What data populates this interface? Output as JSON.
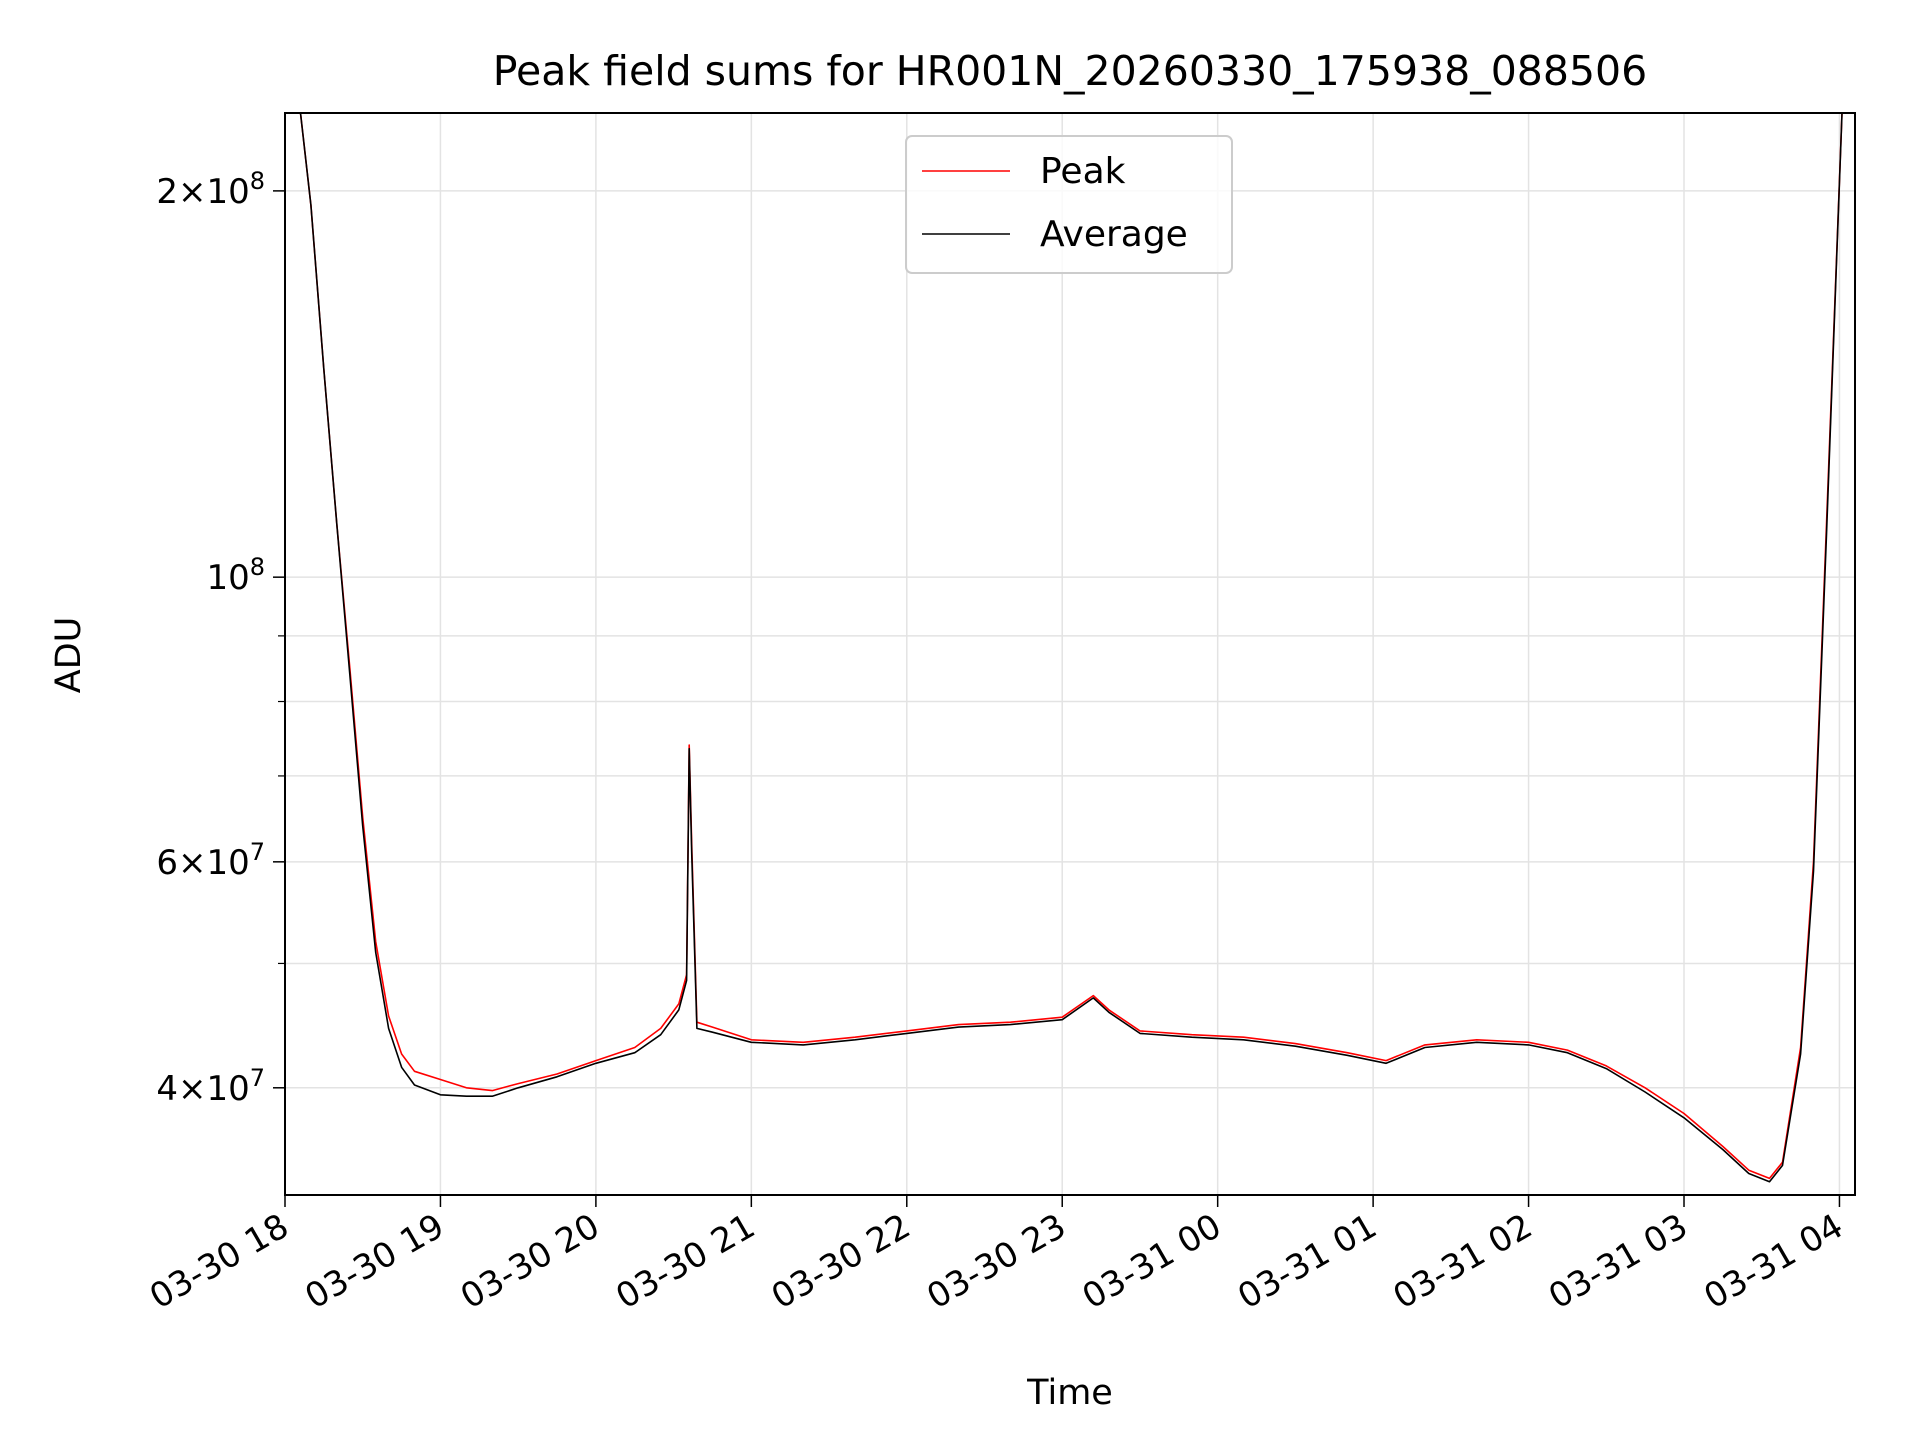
{
  "chart_data": {
    "type": "line",
    "title": "Peak field sums for HR001N_20260330_175938_088506",
    "xlabel": "Time",
    "ylabel": "ADU",
    "yscale": "log",
    "ylim": [
      33000000,
      230000000
    ],
    "xlim": [
      "2026-03-30T18:00",
      "2026-03-31T04:06"
    ],
    "grid": true,
    "legend_position": "top-center",
    "x_ticks": [
      {
        "t": "2026-03-30T18:00",
        "label": "03-30 18"
      },
      {
        "t": "2026-03-30T19:00",
        "label": "03-30 19"
      },
      {
        "t": "2026-03-30T20:00",
        "label": "03-30 20"
      },
      {
        "t": "2026-03-30T21:00",
        "label": "03-30 21"
      },
      {
        "t": "2026-03-30T22:00",
        "label": "03-30 22"
      },
      {
        "t": "2026-03-30T23:00",
        "label": "03-30 23"
      },
      {
        "t": "2026-03-31T00:00",
        "label": "03-31 00"
      },
      {
        "t": "2026-03-31T01:00",
        "label": "03-31 01"
      },
      {
        "t": "2026-03-31T02:00",
        "label": "03-31 02"
      },
      {
        "t": "2026-03-31T03:00",
        "label": "03-31 03"
      },
      {
        "t": "2026-03-31T04:00",
        "label": "03-31 04"
      }
    ],
    "y_ticks_major": [
      {
        "value": 40000000,
        "mantissa": "4",
        "exponent": "7"
      },
      {
        "value": 60000000,
        "mantissa": "6",
        "exponent": "7"
      },
      {
        "value": 100000000,
        "mantissa": "",
        "exponent": "8"
      },
      {
        "value": 200000000,
        "mantissa": "2",
        "exponent": "8"
      }
    ],
    "y_ticks_minor": [
      50000000,
      70000000,
      80000000,
      90000000
    ],
    "series": [
      {
        "name": "Peak",
        "color": "#ff0000",
        "points": [
          [
            "2026-03-30T18:06",
            230000000
          ],
          [
            "2026-03-30T18:10",
            195000000
          ],
          [
            "2026-03-30T18:15",
            145000000
          ],
          [
            "2026-03-30T18:20",
            110000000
          ],
          [
            "2026-03-30T18:25",
            85000000
          ],
          [
            "2026-03-30T18:30",
            65000000
          ],
          [
            "2026-03-30T18:35",
            52000000
          ],
          [
            "2026-03-30T18:40",
            45500000
          ],
          [
            "2026-03-30T18:45",
            42500000
          ],
          [
            "2026-03-30T18:50",
            41200000
          ],
          [
            "2026-03-30T19:00",
            40600000
          ],
          [
            "2026-03-30T19:10",
            40000000
          ],
          [
            "2026-03-30T19:20",
            39800000
          ],
          [
            "2026-03-30T19:30",
            40300000
          ],
          [
            "2026-03-30T19:45",
            41000000
          ],
          [
            "2026-03-30T20:00",
            42000000
          ],
          [
            "2026-03-30T20:15",
            43000000
          ],
          [
            "2026-03-30T20:25",
            44500000
          ],
          [
            "2026-03-30T20:32",
            46500000
          ],
          [
            "2026-03-30T20:35",
            49000000
          ],
          [
            "2026-03-30T20:36",
            74000000
          ],
          [
            "2026-03-30T20:37",
            62000000
          ],
          [
            "2026-03-30T20:39",
            45000000
          ],
          [
            "2026-03-30T20:45",
            44600000
          ],
          [
            "2026-03-30T21:00",
            43600000
          ],
          [
            "2026-03-30T21:20",
            43400000
          ],
          [
            "2026-03-30T21:40",
            43800000
          ],
          [
            "2026-03-30T22:00",
            44300000
          ],
          [
            "2026-03-30T22:20",
            44800000
          ],
          [
            "2026-03-30T22:40",
            45000000
          ],
          [
            "2026-03-30T23:00",
            45400000
          ],
          [
            "2026-03-30T23:12",
            47200000
          ],
          [
            "2026-03-30T23:18",
            46000000
          ],
          [
            "2026-03-30T23:30",
            44300000
          ],
          [
            "2026-03-30T23:50",
            44000000
          ],
          [
            "2026-03-31T00:10",
            43800000
          ],
          [
            "2026-03-31T00:30",
            43300000
          ],
          [
            "2026-03-31T00:50",
            42600000
          ],
          [
            "2026-03-31T01:05",
            42000000
          ],
          [
            "2026-03-31T01:20",
            43200000
          ],
          [
            "2026-03-31T01:40",
            43600000
          ],
          [
            "2026-03-31T02:00",
            43400000
          ],
          [
            "2026-03-31T02:15",
            42800000
          ],
          [
            "2026-03-31T02:30",
            41600000
          ],
          [
            "2026-03-31T02:45",
            40000000
          ],
          [
            "2026-03-31T03:00",
            38200000
          ],
          [
            "2026-03-31T03:15",
            36000000
          ],
          [
            "2026-03-31T03:25",
            34500000
          ],
          [
            "2026-03-31T03:33",
            34000000
          ],
          [
            "2026-03-31T03:38",
            35000000
          ],
          [
            "2026-03-31T03:45",
            43000000
          ],
          [
            "2026-03-31T03:50",
            60000000
          ],
          [
            "2026-03-31T03:55",
            110000000
          ],
          [
            "2026-03-31T04:01",
            230000000
          ]
        ]
      },
      {
        "name": "Average",
        "color": "#000000",
        "points": [
          [
            "2026-03-30T18:06",
            230000000
          ],
          [
            "2026-03-30T18:10",
            195000000
          ],
          [
            "2026-03-30T18:15",
            145000000
          ],
          [
            "2026-03-30T18:20",
            110000000
          ],
          [
            "2026-03-30T18:25",
            84000000
          ],
          [
            "2026-03-30T18:30",
            64000000
          ],
          [
            "2026-03-30T18:35",
            51000000
          ],
          [
            "2026-03-30T18:40",
            44500000
          ],
          [
            "2026-03-30T18:45",
            41500000
          ],
          [
            "2026-03-30T18:50",
            40200000
          ],
          [
            "2026-03-30T19:00",
            39500000
          ],
          [
            "2026-03-30T19:10",
            39400000
          ],
          [
            "2026-03-30T19:20",
            39400000
          ],
          [
            "2026-03-30T19:30",
            40000000
          ],
          [
            "2026-03-30T19:45",
            40800000
          ],
          [
            "2026-03-30T20:00",
            41800000
          ],
          [
            "2026-03-30T20:15",
            42600000
          ],
          [
            "2026-03-30T20:25",
            44000000
          ],
          [
            "2026-03-30T20:32",
            46000000
          ],
          [
            "2026-03-30T20:35",
            48500000
          ],
          [
            "2026-03-30T20:36",
            73500000
          ],
          [
            "2026-03-30T20:37",
            61000000
          ],
          [
            "2026-03-30T20:39",
            44500000
          ],
          [
            "2026-03-30T20:45",
            44200000
          ],
          [
            "2026-03-30T21:00",
            43400000
          ],
          [
            "2026-03-30T21:20",
            43200000
          ],
          [
            "2026-03-30T21:40",
            43600000
          ],
          [
            "2026-03-30T22:00",
            44100000
          ],
          [
            "2026-03-30T22:20",
            44600000
          ],
          [
            "2026-03-30T22:40",
            44800000
          ],
          [
            "2026-03-30T23:00",
            45200000
          ],
          [
            "2026-03-30T23:12",
            47000000
          ],
          [
            "2026-03-30T23:18",
            45800000
          ],
          [
            "2026-03-30T23:30",
            44100000
          ],
          [
            "2026-03-30T23:50",
            43800000
          ],
          [
            "2026-03-31T00:10",
            43600000
          ],
          [
            "2026-03-31T00:30",
            43100000
          ],
          [
            "2026-03-31T00:50",
            42400000
          ],
          [
            "2026-03-31T01:05",
            41800000
          ],
          [
            "2026-03-31T01:20",
            43000000
          ],
          [
            "2026-03-31T01:40",
            43400000
          ],
          [
            "2026-03-31T02:00",
            43200000
          ],
          [
            "2026-03-31T02:15",
            42600000
          ],
          [
            "2026-03-31T02:30",
            41400000
          ],
          [
            "2026-03-31T02:45",
            39700000
          ],
          [
            "2026-03-31T03:00",
            37900000
          ],
          [
            "2026-03-31T03:15",
            35800000
          ],
          [
            "2026-03-31T03:25",
            34300000
          ],
          [
            "2026-03-31T03:33",
            33800000
          ],
          [
            "2026-03-31T03:38",
            34800000
          ],
          [
            "2026-03-31T03:45",
            42500000
          ],
          [
            "2026-03-31T03:50",
            59000000
          ],
          [
            "2026-03-31T03:55",
            108000000
          ],
          [
            "2026-03-31T04:01",
            230000000
          ]
        ]
      }
    ]
  }
}
